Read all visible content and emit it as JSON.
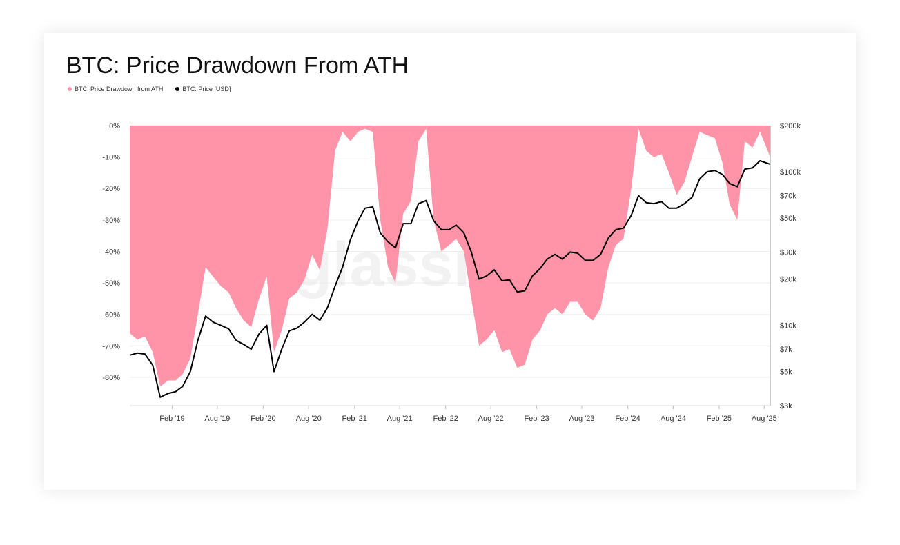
{
  "chart_data": {
    "type": "area",
    "title": "BTC: Price Drawdown From ATH",
    "watermark": "glassnode",
    "legend": [
      {
        "name": "BTC: Price Drawdown from ATH",
        "color": "#ff94a8"
      },
      {
        "name": "BTC: Price [USD]",
        "color": "#000000"
      }
    ],
    "x_ticks": [
      "Feb '19",
      "Aug '19",
      "Feb '20",
      "Aug '20",
      "Feb '21",
      "Aug '21",
      "Feb '22",
      "Aug '22",
      "Feb '23",
      "Aug '23",
      "Feb '24",
      "Aug '24",
      "Feb '25",
      "Aug '25"
    ],
    "x_tick_dates": [
      "2019-02-01",
      "2019-08-01",
      "2020-02-01",
      "2020-08-01",
      "2021-02-01",
      "2021-08-01",
      "2022-02-01",
      "2022-08-01",
      "2023-02-01",
      "2023-08-01",
      "2024-02-01",
      "2024-08-01",
      "2025-02-01",
      "2025-08-01"
    ],
    "x_range": [
      "2018-08-15",
      "2025-08-25"
    ],
    "y_left_ticks": [
      "0%",
      "-10%",
      "-20%",
      "-30%",
      "-40%",
      "-50%",
      "-60%",
      "-70%",
      "-80%"
    ],
    "y_left_values": [
      0,
      -10,
      -20,
      -30,
      -40,
      -50,
      -60,
      -70,
      -80
    ],
    "y_left_range": [
      -89,
      0
    ],
    "y_right_ticks": [
      "$200k",
      "$100k",
      "$70k",
      "$50k",
      "$30k",
      "$20k",
      "$10k",
      "$7k",
      "$5k",
      "$3k"
    ],
    "y_right_values": [
      200000,
      100000,
      70000,
      50000,
      30000,
      20000,
      10000,
      7000,
      5000,
      3000
    ],
    "y_right_range": [
      3000,
      200000
    ],
    "y_right_scale": "log",
    "series": [
      {
        "name": "BTC: Price Drawdown from ATH",
        "color": "#ff94a8",
        "points": [
          [
            "2018-08-15",
            -66
          ],
          [
            "2018-09-15",
            -68
          ],
          [
            "2018-10-15",
            -67
          ],
          [
            "2018-11-15",
            -72
          ],
          [
            "2018-12-15",
            -83
          ],
          [
            "2019-01-15",
            -81
          ],
          [
            "2019-02-15",
            -81
          ],
          [
            "2019-03-15",
            -79
          ],
          [
            "2019-04-15",
            -74
          ],
          [
            "2019-05-15",
            -60
          ],
          [
            "2019-06-15",
            -45
          ],
          [
            "2019-07-15",
            -48
          ],
          [
            "2019-08-15",
            -51
          ],
          [
            "2019-09-15",
            -53
          ],
          [
            "2019-10-15",
            -58
          ],
          [
            "2019-11-15",
            -62
          ],
          [
            "2019-12-15",
            -64
          ],
          [
            "2020-01-15",
            -55
          ],
          [
            "2020-02-15",
            -48
          ],
          [
            "2020-03-15",
            -72
          ],
          [
            "2020-04-15",
            -65
          ],
          [
            "2020-05-15",
            -55
          ],
          [
            "2020-06-15",
            -53
          ],
          [
            "2020-07-15",
            -49
          ],
          [
            "2020-08-15",
            -41
          ],
          [
            "2020-09-15",
            -46
          ],
          [
            "2020-10-15",
            -33
          ],
          [
            "2020-11-15",
            -8
          ],
          [
            "2020-12-15",
            -2
          ],
          [
            "2021-01-15",
            -5
          ],
          [
            "2021-02-15",
            -2
          ],
          [
            "2021-03-15",
            -1
          ],
          [
            "2021-04-15",
            -2
          ],
          [
            "2021-05-15",
            -30
          ],
          [
            "2021-06-15",
            -45
          ],
          [
            "2021-07-15",
            -50
          ],
          [
            "2021-08-15",
            -28
          ],
          [
            "2021-09-15",
            -24
          ],
          [
            "2021-10-15",
            -5
          ],
          [
            "2021-11-15",
            -1
          ],
          [
            "2021-12-15",
            -30
          ],
          [
            "2022-01-15",
            -40
          ],
          [
            "2022-02-15",
            -38
          ],
          [
            "2022-03-15",
            -36
          ],
          [
            "2022-04-15",
            -40
          ],
          [
            "2022-05-15",
            -55
          ],
          [
            "2022-06-15",
            -70
          ],
          [
            "2022-07-15",
            -68
          ],
          [
            "2022-08-15",
            -65
          ],
          [
            "2022-09-15",
            -72
          ],
          [
            "2022-10-15",
            -71
          ],
          [
            "2022-11-15",
            -77
          ],
          [
            "2022-12-15",
            -76
          ],
          [
            "2023-01-15",
            -68
          ],
          [
            "2023-02-15",
            -65
          ],
          [
            "2023-03-15",
            -60
          ],
          [
            "2023-04-15",
            -58
          ],
          [
            "2023-05-15",
            -60
          ],
          [
            "2023-06-15",
            -56
          ],
          [
            "2023-07-15",
            -56
          ],
          [
            "2023-08-15",
            -60
          ],
          [
            "2023-09-15",
            -62
          ],
          [
            "2023-10-15",
            -58
          ],
          [
            "2023-11-15",
            -45
          ],
          [
            "2023-12-15",
            -38
          ],
          [
            "2024-01-15",
            -36
          ],
          [
            "2024-02-15",
            -20
          ],
          [
            "2024-03-15",
            -1
          ],
          [
            "2024-04-15",
            -8
          ],
          [
            "2024-05-15",
            -10
          ],
          [
            "2024-06-15",
            -9
          ],
          [
            "2024-07-15",
            -15
          ],
          [
            "2024-08-15",
            -22
          ],
          [
            "2024-09-15",
            -18
          ],
          [
            "2024-10-15",
            -10
          ],
          [
            "2024-11-15",
            -2
          ],
          [
            "2024-12-15",
            -3
          ],
          [
            "2025-01-15",
            -4
          ],
          [
            "2025-02-15",
            -12
          ],
          [
            "2025-03-15",
            -25
          ],
          [
            "2025-04-15",
            -30
          ],
          [
            "2025-05-15",
            -5
          ],
          [
            "2025-06-15",
            -7
          ],
          [
            "2025-07-15",
            -2
          ],
          [
            "2025-08-25",
            -10
          ]
        ]
      },
      {
        "name": "BTC: Price [USD]",
        "color": "#000000",
        "points": [
          [
            "2018-08-15",
            6400
          ],
          [
            "2018-09-15",
            6600
          ],
          [
            "2018-10-15",
            6500
          ],
          [
            "2018-11-15",
            5500
          ],
          [
            "2018-12-15",
            3400
          ],
          [
            "2019-01-15",
            3600
          ],
          [
            "2019-02-15",
            3700
          ],
          [
            "2019-03-15",
            4000
          ],
          [
            "2019-04-15",
            5000
          ],
          [
            "2019-05-15",
            8000
          ],
          [
            "2019-06-15",
            11500
          ],
          [
            "2019-07-15",
            10500
          ],
          [
            "2019-08-15",
            10000
          ],
          [
            "2019-09-15",
            9500
          ],
          [
            "2019-10-15",
            8000
          ],
          [
            "2019-11-15",
            7500
          ],
          [
            "2019-12-15",
            7000
          ],
          [
            "2020-01-15",
            8800
          ],
          [
            "2020-02-15",
            10000
          ],
          [
            "2020-03-15",
            5000
          ],
          [
            "2020-04-15",
            7000
          ],
          [
            "2020-05-15",
            9200
          ],
          [
            "2020-06-15",
            9600
          ],
          [
            "2020-07-15",
            10500
          ],
          [
            "2020-08-15",
            11800
          ],
          [
            "2020-09-15",
            10800
          ],
          [
            "2020-10-15",
            13000
          ],
          [
            "2020-11-15",
            18000
          ],
          [
            "2020-12-15",
            24000
          ],
          [
            "2021-01-15",
            36000
          ],
          [
            "2021-02-15",
            48000
          ],
          [
            "2021-03-15",
            58000
          ],
          [
            "2021-04-15",
            59000
          ],
          [
            "2021-05-15",
            40000
          ],
          [
            "2021-06-15",
            35000
          ],
          [
            "2021-07-15",
            32000
          ],
          [
            "2021-08-15",
            46000
          ],
          [
            "2021-09-15",
            46000
          ],
          [
            "2021-10-15",
            62000
          ],
          [
            "2021-11-15",
            65000
          ],
          [
            "2021-12-15",
            48000
          ],
          [
            "2022-01-15",
            42000
          ],
          [
            "2022-02-15",
            42000
          ],
          [
            "2022-03-15",
            45000
          ],
          [
            "2022-04-15",
            40000
          ],
          [
            "2022-05-15",
            30000
          ],
          [
            "2022-06-15",
            20000
          ],
          [
            "2022-07-15",
            21000
          ],
          [
            "2022-08-15",
            23000
          ],
          [
            "2022-09-15",
            19500
          ],
          [
            "2022-10-15",
            19800
          ],
          [
            "2022-11-15",
            16500
          ],
          [
            "2022-12-15",
            16800
          ],
          [
            "2023-01-15",
            21000
          ],
          [
            "2023-02-15",
            23500
          ],
          [
            "2023-03-15",
            27000
          ],
          [
            "2023-04-15",
            29000
          ],
          [
            "2023-05-15",
            27000
          ],
          [
            "2023-06-15",
            30000
          ],
          [
            "2023-07-15",
            29500
          ],
          [
            "2023-08-15",
            26500
          ],
          [
            "2023-09-15",
            26500
          ],
          [
            "2023-10-15",
            29000
          ],
          [
            "2023-11-15",
            37000
          ],
          [
            "2023-12-15",
            42000
          ],
          [
            "2024-01-15",
            43000
          ],
          [
            "2024-02-15",
            52000
          ],
          [
            "2024-03-15",
            70000
          ],
          [
            "2024-04-15",
            63000
          ],
          [
            "2024-05-15",
            62000
          ],
          [
            "2024-06-15",
            64000
          ],
          [
            "2024-07-15",
            58000
          ],
          [
            "2024-08-15",
            58000
          ],
          [
            "2024-09-15",
            62000
          ],
          [
            "2024-10-15",
            68000
          ],
          [
            "2024-11-15",
            90000
          ],
          [
            "2024-12-15",
            100000
          ],
          [
            "2025-01-15",
            102000
          ],
          [
            "2025-02-15",
            96000
          ],
          [
            "2025-03-15",
            84000
          ],
          [
            "2025-04-15",
            80000
          ],
          [
            "2025-05-15",
            104000
          ],
          [
            "2025-06-15",
            106000
          ],
          [
            "2025-07-15",
            118000
          ],
          [
            "2025-08-25",
            112000
          ]
        ]
      }
    ]
  }
}
